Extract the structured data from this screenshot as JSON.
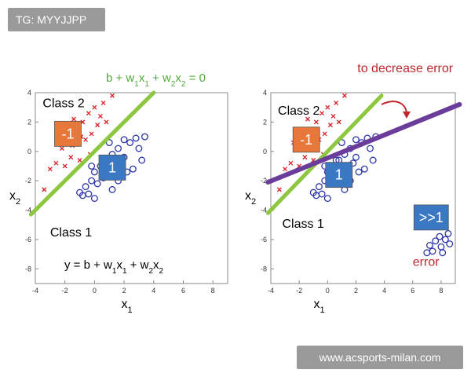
{
  "header": {
    "tag": "TG: MYYJJPP"
  },
  "footer": {
    "watermark": "www.acsports-milan.com"
  },
  "colors": {
    "line_green": "#8dc63f",
    "line_purple": "#6a3d9a",
    "class1": "#2b35a8",
    "class2": "#d8202a",
    "label_orange": "#e8773a",
    "label_blue": "#3a78c4",
    "error_red": "#c0272d",
    "equation_green": "#53a83c"
  },
  "chart_data": [
    {
      "type": "scatter",
      "panel": "left",
      "xlabel_base": "x",
      "xlabel_sub": "1",
      "ylabel_base": "x",
      "ylabel_sub": "2",
      "xlim": [
        -4,
        9
      ],
      "ylim": [
        -9,
        4
      ],
      "x_ticks": [
        -4,
        -2,
        0,
        2,
        4,
        6,
        8
      ],
      "y_ticks": [
        4,
        2,
        0,
        -2,
        -4,
        -6,
        -8
      ],
      "grid": false,
      "series": [
        {
          "marker": "x",
          "points": [
            [
              -3,
              -1.2
            ],
            [
              -2.6,
              -0.8
            ],
            [
              -2.2,
              0.2
            ],
            [
              -1.8,
              1.0
            ],
            [
              -1.5,
              0.4
            ],
            [
              -1.2,
              1.5
            ],
            [
              -1.0,
              -0.6
            ],
            [
              -0.8,
              2.0
            ],
            [
              -0.6,
              0.8
            ],
            [
              -0.4,
              2.6
            ],
            [
              -0.2,
              1.2
            ],
            [
              0,
              3.0
            ],
            [
              0.2,
              1.8
            ],
            [
              0.4,
              2.4
            ],
            [
              0.6,
              3.3
            ],
            [
              -1.6,
              -0.4
            ],
            [
              -2.0,
              -1.0
            ],
            [
              -0.9,
              1.0
            ],
            [
              -1.4,
              2.2
            ],
            [
              0.8,
              2.0
            ],
            [
              1.2,
              3.8
            ],
            [
              -2.4,
              0.6
            ],
            [
              -0.3,
              -0.2
            ],
            [
              -3.4,
              -2.6
            ]
          ]
        },
        {
          "marker": "o",
          "points": [
            [
              -1,
              -2.8
            ],
            [
              -0.6,
              -2.4
            ],
            [
              -0.2,
              -2.0
            ],
            [
              0,
              -1.4
            ],
            [
              0.4,
              -1.0
            ],
            [
              0.8,
              -0.6
            ],
            [
              1.2,
              -0.2
            ],
            [
              1.6,
              0.2
            ],
            [
              2.0,
              -0.4
            ],
            [
              2.4,
              0.6
            ],
            [
              2.8,
              0.9
            ],
            [
              3.0,
              0.2
            ],
            [
              3.2,
              -0.6
            ],
            [
              -0.8,
              -3.0
            ],
            [
              -0.4,
              -2.9
            ],
            [
              1.0,
              -1.6
            ],
            [
              1.4,
              -1.2
            ],
            [
              1.8,
              -0.8
            ],
            [
              2.2,
              -1.4
            ],
            [
              0.2,
              -2.2
            ],
            [
              0.6,
              -1.8
            ],
            [
              1.2,
              -2.6
            ],
            [
              2.6,
              -1.2
            ],
            [
              3.4,
              1.0
            ],
            [
              0.0,
              -3.2
            ],
            [
              -0.2,
              -1.0
            ],
            [
              1.6,
              -2.0
            ],
            [
              2.0,
              0.8
            ],
            [
              1.0,
              0.6
            ],
            [
              0.6,
              -0.6
            ]
          ]
        }
      ],
      "boundary": {
        "color": "line_green",
        "x": [
          -4.3,
          4.0
        ],
        "y": [
          -4.3,
          4.0
        ]
      },
      "annotations": [
        {
          "kind": "text",
          "text": "Class 2",
          "x": -3.5,
          "y": 3.0
        },
        {
          "kind": "text",
          "text": "Class 1",
          "x": -3.0,
          "y": -5.8
        },
        {
          "kind": "box",
          "text": "-1",
          "color": "label_orange",
          "x": -1.8,
          "y": 1.2
        },
        {
          "kind": "box",
          "text": "1",
          "color": "label_blue",
          "x": 1.2,
          "y": -1.1
        }
      ],
      "equation_top": {
        "parts": [
          "b + w",
          "1",
          "x",
          "1",
          " + w",
          "2",
          "x",
          "2",
          " = 0"
        ]
      },
      "equation_bottom": {
        "parts": [
          "y = b + w",
          "1",
          "x",
          "1",
          " + w",
          "2",
          "x",
          "2"
        ]
      }
    },
    {
      "type": "scatter",
      "panel": "right",
      "xlabel_base": "x",
      "xlabel_sub": "1",
      "ylabel_base": "x",
      "ylabel_sub": "2",
      "xlim": [
        -4,
        9
      ],
      "ylim": [
        -9,
        4
      ],
      "x_ticks": [
        -4,
        -2,
        0,
        2,
        4,
        6,
        8
      ],
      "y_ticks": [
        4,
        2,
        0,
        -2,
        -4,
        -6,
        -8
      ],
      "grid": false,
      "series": [
        {
          "marker": "x",
          "points": [
            [
              -3,
              -1.2
            ],
            [
              -2.6,
              -0.8
            ],
            [
              -2.2,
              0.2
            ],
            [
              -1.8,
              1.0
            ],
            [
              -1.5,
              0.4
            ],
            [
              -1.2,
              1.5
            ],
            [
              -1.0,
              -0.6
            ],
            [
              -0.8,
              2.0
            ],
            [
              -0.6,
              0.8
            ],
            [
              -0.4,
              2.6
            ],
            [
              -0.2,
              1.2
            ],
            [
              0,
              3.0
            ],
            [
              0.2,
              1.8
            ],
            [
              0.4,
              2.4
            ],
            [
              0.6,
              3.3
            ],
            [
              -1.6,
              -0.4
            ],
            [
              -2.0,
              -1.0
            ],
            [
              -0.9,
              1.0
            ],
            [
              -1.4,
              2.2
            ],
            [
              0.8,
              2.0
            ],
            [
              1.2,
              3.8
            ],
            [
              -2.4,
              0.6
            ],
            [
              -0.3,
              -0.2
            ],
            [
              -3.4,
              -2.6
            ]
          ]
        },
        {
          "marker": "o",
          "points": [
            [
              -1,
              -2.8
            ],
            [
              -0.6,
              -2.4
            ],
            [
              -0.2,
              -2.0
            ],
            [
              0,
              -1.4
            ],
            [
              0.4,
              -1.0
            ],
            [
              0.8,
              -0.6
            ],
            [
              1.2,
              -0.2
            ],
            [
              1.6,
              0.2
            ],
            [
              2.0,
              -0.4
            ],
            [
              2.4,
              0.6
            ],
            [
              2.8,
              0.9
            ],
            [
              3.0,
              0.2
            ],
            [
              3.2,
              -0.6
            ],
            [
              -0.8,
              -3.0
            ],
            [
              -0.4,
              -2.9
            ],
            [
              1.0,
              -1.6
            ],
            [
              1.4,
              -1.2
            ],
            [
              1.8,
              -0.8
            ],
            [
              2.2,
              -1.4
            ],
            [
              0.2,
              -2.2
            ],
            [
              0.6,
              -1.8
            ],
            [
              1.2,
              -2.6
            ],
            [
              2.6,
              -1.2
            ],
            [
              3.4,
              1.0
            ],
            [
              0.0,
              -3.2
            ],
            [
              -0.2,
              -1.0
            ],
            [
              1.6,
              -2.0
            ],
            [
              2.0,
              0.8
            ],
            [
              1.0,
              0.6
            ],
            [
              0.6,
              -0.6
            ],
            [
              7.2,
              -6.4
            ],
            [
              7.6,
              -6.1
            ],
            [
              8.0,
              -6.5
            ],
            [
              8.3,
              -6.0
            ],
            [
              8.6,
              -6.3
            ],
            [
              7.4,
              -6.8
            ],
            [
              7.9,
              -5.8
            ],
            [
              8.5,
              -5.6
            ],
            [
              7.0,
              -6.9
            ],
            [
              8.1,
              -6.9
            ]
          ]
        }
      ],
      "boundary": {
        "color": "line_green",
        "x": [
          -4.2,
          3.8
        ],
        "y": [
          -4.2,
          3.8
        ]
      },
      "boundary2": {
        "color": "line_purple",
        "x": [
          -4.2,
          9.3
        ],
        "y": [
          -2.1,
          3.2
        ]
      },
      "annotations": [
        {
          "kind": "text",
          "text": "Class 2",
          "x": -3.5,
          "y": 2.5
        },
        {
          "kind": "text",
          "text": "Class 1",
          "x": -3.2,
          "y": -5.2
        },
        {
          "kind": "box",
          "text": "-1",
          "color": "label_orange",
          "x": -1.5,
          "y": 0.8
        },
        {
          "kind": "box",
          "text": "1",
          "color": "label_blue",
          "x": 0.8,
          "y": -1.6
        },
        {
          "kind": "box",
          "text": ">>1",
          "color": "label_blue",
          "x": 7.3,
          "y": -4.5
        },
        {
          "kind": "red",
          "text": "to decrease error",
          "x": 2.1,
          "y": 5.4
        },
        {
          "kind": "red",
          "text": "error",
          "x": 6.0,
          "y": -7.8
        }
      ]
    }
  ]
}
